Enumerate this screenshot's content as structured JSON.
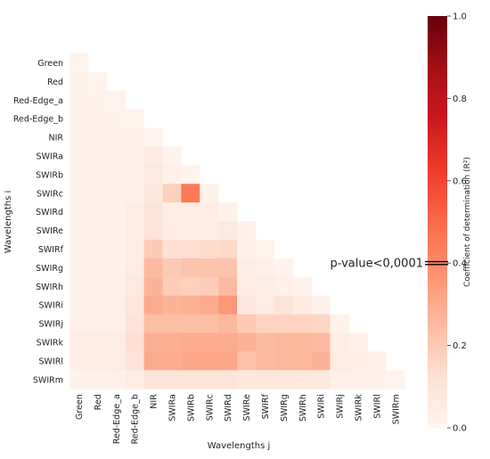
{
  "chart_data": {
    "type": "heatmap",
    "title": "",
    "xlabel": "Wavelengths j",
    "ylabel": "Wavelengths i",
    "rows": [
      "Green",
      "Red",
      "Red-Edge_a",
      "Red-Edge_b",
      "NIR",
      "SWIRa",
      "SWIRb",
      "SWIRc",
      "SWIRd",
      "SWIRe",
      "SWIRf",
      "SWIRg",
      "SWIRh",
      "SWIRi",
      "SWIRj",
      "SWIRk",
      "SWIRl",
      "SWIRm"
    ],
    "columns": [
      "Green",
      "Red",
      "Red-Edge_a",
      "Red-Edge_b",
      "NIR",
      "SWIRa",
      "SWIRb",
      "SWIRc",
      "SWIRd",
      "SWIRe",
      "SWIRf",
      "SWIRg",
      "SWIRh",
      "SWIRi",
      "SWIRj",
      "SWIRk",
      "SWIRl",
      "SWIRm"
    ],
    "values": [
      [
        0.01
      ],
      [
        0.02,
        0.01
      ],
      [
        0.02,
        0.02,
        0.01
      ],
      [
        0.02,
        0.02,
        0.02,
        0.01
      ],
      [
        0.02,
        0.02,
        0.02,
        0.03,
        0.01
      ],
      [
        0.02,
        0.02,
        0.02,
        0.03,
        0.06,
        0.01
      ],
      [
        0.02,
        0.02,
        0.02,
        0.03,
        0.07,
        0.03,
        0.01
      ],
      [
        0.02,
        0.02,
        0.02,
        0.03,
        0.08,
        0.18,
        0.45,
        0.02
      ],
      [
        0.02,
        0.02,
        0.02,
        0.04,
        0.1,
        0.05,
        0.05,
        0.05,
        0.02
      ],
      [
        0.02,
        0.02,
        0.02,
        0.04,
        0.11,
        0.06,
        0.06,
        0.06,
        0.07,
        0.02
      ],
      [
        0.02,
        0.02,
        0.02,
        0.05,
        0.2,
        0.12,
        0.13,
        0.14,
        0.15,
        0.03,
        0.01
      ],
      [
        0.02,
        0.02,
        0.02,
        0.06,
        0.25,
        0.2,
        0.22,
        0.22,
        0.22,
        0.04,
        0.03,
        0.01
      ],
      [
        0.02,
        0.02,
        0.02,
        0.07,
        0.27,
        0.19,
        0.18,
        0.19,
        0.25,
        0.05,
        0.04,
        0.03,
        0.01
      ],
      [
        0.02,
        0.02,
        0.03,
        0.09,
        0.3,
        0.27,
        0.28,
        0.3,
        0.36,
        0.08,
        0.06,
        0.1,
        0.06,
        0.02
      ],
      [
        0.03,
        0.03,
        0.03,
        0.1,
        0.24,
        0.24,
        0.24,
        0.24,
        0.26,
        0.2,
        0.17,
        0.17,
        0.17,
        0.16,
        0.02
      ],
      [
        0.04,
        0.04,
        0.05,
        0.13,
        0.29,
        0.29,
        0.3,
        0.3,
        0.3,
        0.28,
        0.25,
        0.26,
        0.26,
        0.25,
        0.05,
        0.03
      ],
      [
        0.04,
        0.04,
        0.05,
        0.11,
        0.3,
        0.3,
        0.31,
        0.31,
        0.31,
        0.23,
        0.25,
        0.26,
        0.26,
        0.27,
        0.05,
        0.04,
        0.02
      ],
      [
        0.02,
        0.02,
        0.03,
        0.05,
        0.1,
        0.1,
        0.1,
        0.1,
        0.1,
        0.08,
        0.08,
        0.08,
        0.07,
        0.07,
        0.03,
        0.03,
        0.02,
        0.01
      ]
    ],
    "colorbar": {
      "label": "Coefficient of determination (R²)",
      "ticks": [
        0.0,
        0.2,
        0.4,
        0.6,
        0.8,
        1.0
      ],
      "tick_labels": [
        "0.0",
        "0.2",
        "0.4",
        "0.6",
        "0.8",
        "1.0"
      ],
      "range": [
        0,
        1
      ],
      "colormap": "Reds",
      "marker_value": 0.4,
      "marker_label": "p-value<0,0001"
    },
    "grid": false,
    "legend": "none"
  }
}
